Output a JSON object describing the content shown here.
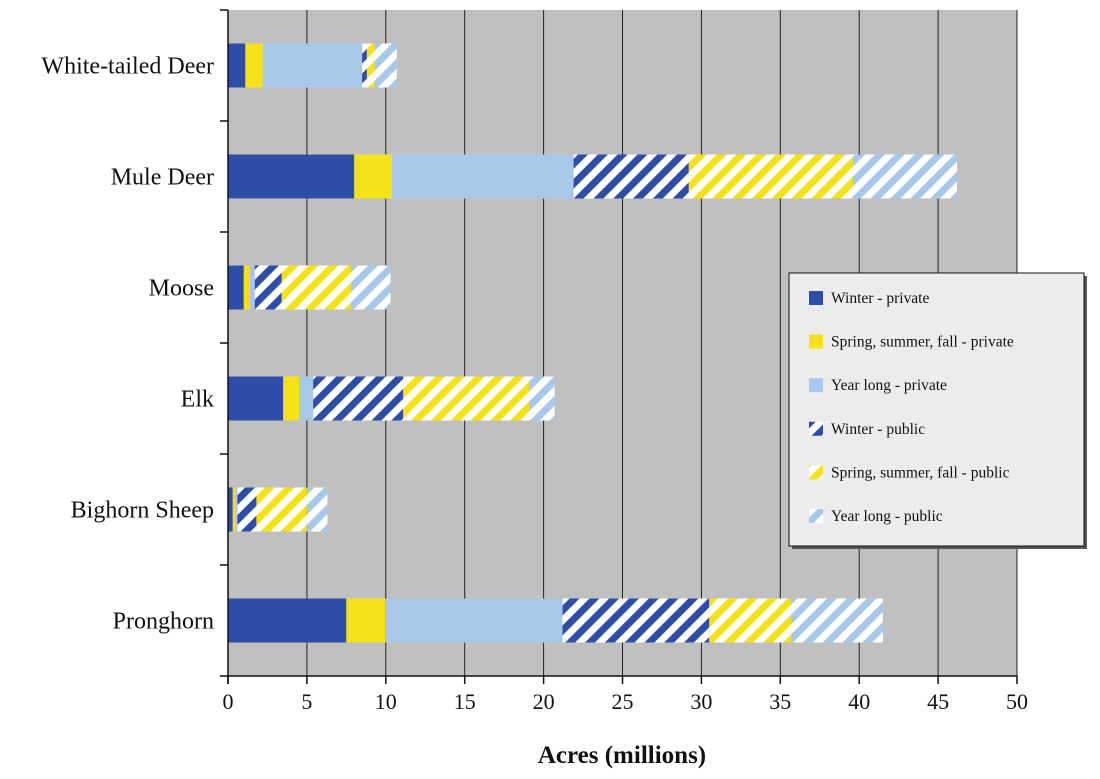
{
  "chart_data": {
    "type": "bar",
    "orientation": "horizontal",
    "stacked": true,
    "title": "",
    "xlabel": "Acres (millions)",
    "ylabel": "",
    "xlim": [
      0,
      50
    ],
    "xticks": [
      0,
      5,
      10,
      15,
      20,
      25,
      30,
      35,
      40,
      45,
      50
    ],
    "grid": "vertical lines",
    "plot_background": "#c0c0c0",
    "legend_position": "right",
    "categories": [
      "White-tailed Deer",
      "Mule Deer",
      "Moose",
      "Elk",
      "Bighorn Sheep",
      "Pronghorn"
    ],
    "series": [
      {
        "name": "Winter - private",
        "color": "#2e4da6",
        "pattern": "solid",
        "values": [
          1.1,
          8.0,
          1.0,
          3.5,
          0.3,
          7.5
        ]
      },
      {
        "name": "Spring, summer, fall - private",
        "color": "#f5e216",
        "pattern": "solid",
        "values": [
          1.1,
          2.4,
          0.4,
          1.0,
          0.2,
          2.5
        ]
      },
      {
        "name": "Year long - private",
        "color": "#a8c8ea",
        "pattern": "solid",
        "values": [
          6.3,
          11.5,
          0.3,
          0.9,
          0.1,
          11.2
        ]
      },
      {
        "name": "Winter - public",
        "color": "#2e4da6",
        "pattern": "stripes",
        "values": [
          0.3,
          7.3,
          1.7,
          5.7,
          1.2,
          9.3
        ]
      },
      {
        "name": "Spring, summer, fall - public",
        "color": "#f5e216",
        "pattern": "stripes",
        "values": [
          0.5,
          10.4,
          4.4,
          8.0,
          3.2,
          5.2
        ]
      },
      {
        "name": "Year long - public",
        "color": "#a8c8ea",
        "pattern": "stripes",
        "values": [
          1.4,
          6.6,
          2.5,
          1.6,
          1.3,
          5.8
        ]
      }
    ]
  }
}
